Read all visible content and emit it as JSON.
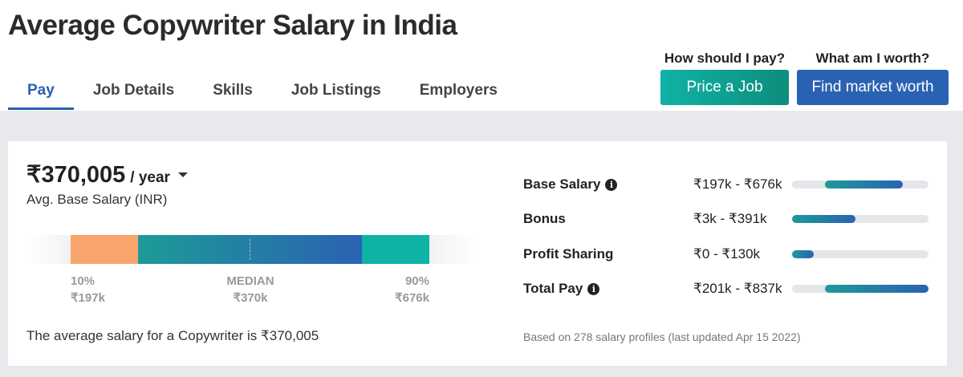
{
  "page": {
    "title": "Average Copywriter Salary in India"
  },
  "tabs": [
    {
      "label": "Pay",
      "active": true
    },
    {
      "label": "Job Details",
      "active": false
    },
    {
      "label": "Skills",
      "active": false
    },
    {
      "label": "Job Listings",
      "active": false
    },
    {
      "label": "Employers",
      "active": false
    }
  ],
  "cta": {
    "price": {
      "question": "How should I pay?",
      "button": "Price a Job",
      "color": "#0fb3a6"
    },
    "worth": {
      "question": "What am I worth?",
      "button": "Find market worth",
      "color": "#2a62b3"
    }
  },
  "salary": {
    "average": "₹370,005",
    "period": "/ year",
    "caption": "Avg. Base Salary (INR)",
    "summary": "The average salary for a Copywriter is ₹370,005",
    "percentiles": {
      "p10": {
        "label": "10%",
        "value": "₹197k"
      },
      "median": {
        "label": "MEDIAN",
        "value": "₹370k"
      },
      "p90": {
        "label": "90%",
        "value": "₹676k"
      }
    },
    "bar_colors": {
      "p10": "#f7a56c",
      "middle_start": "#1d9a98",
      "middle_end": "#2a62b3",
      "p90": "#0fb3a6"
    }
  },
  "compensation": [
    {
      "label": "Base Salary",
      "info": true,
      "range": "₹197k - ₹676k"
    },
    {
      "label": "Bonus",
      "info": false,
      "range": "₹3k - ₹391k"
    },
    {
      "label": "Profit Sharing",
      "info": false,
      "range": "₹0 - ₹130k"
    },
    {
      "label": "Total Pay",
      "info": true,
      "range": "₹201k - ₹837k"
    }
  ],
  "footnote": "Based on 278 salary profiles (last updated Apr 15 2022)",
  "icons": {
    "info": "info-circle-icon",
    "dropdown": "caret-down-icon"
  }
}
